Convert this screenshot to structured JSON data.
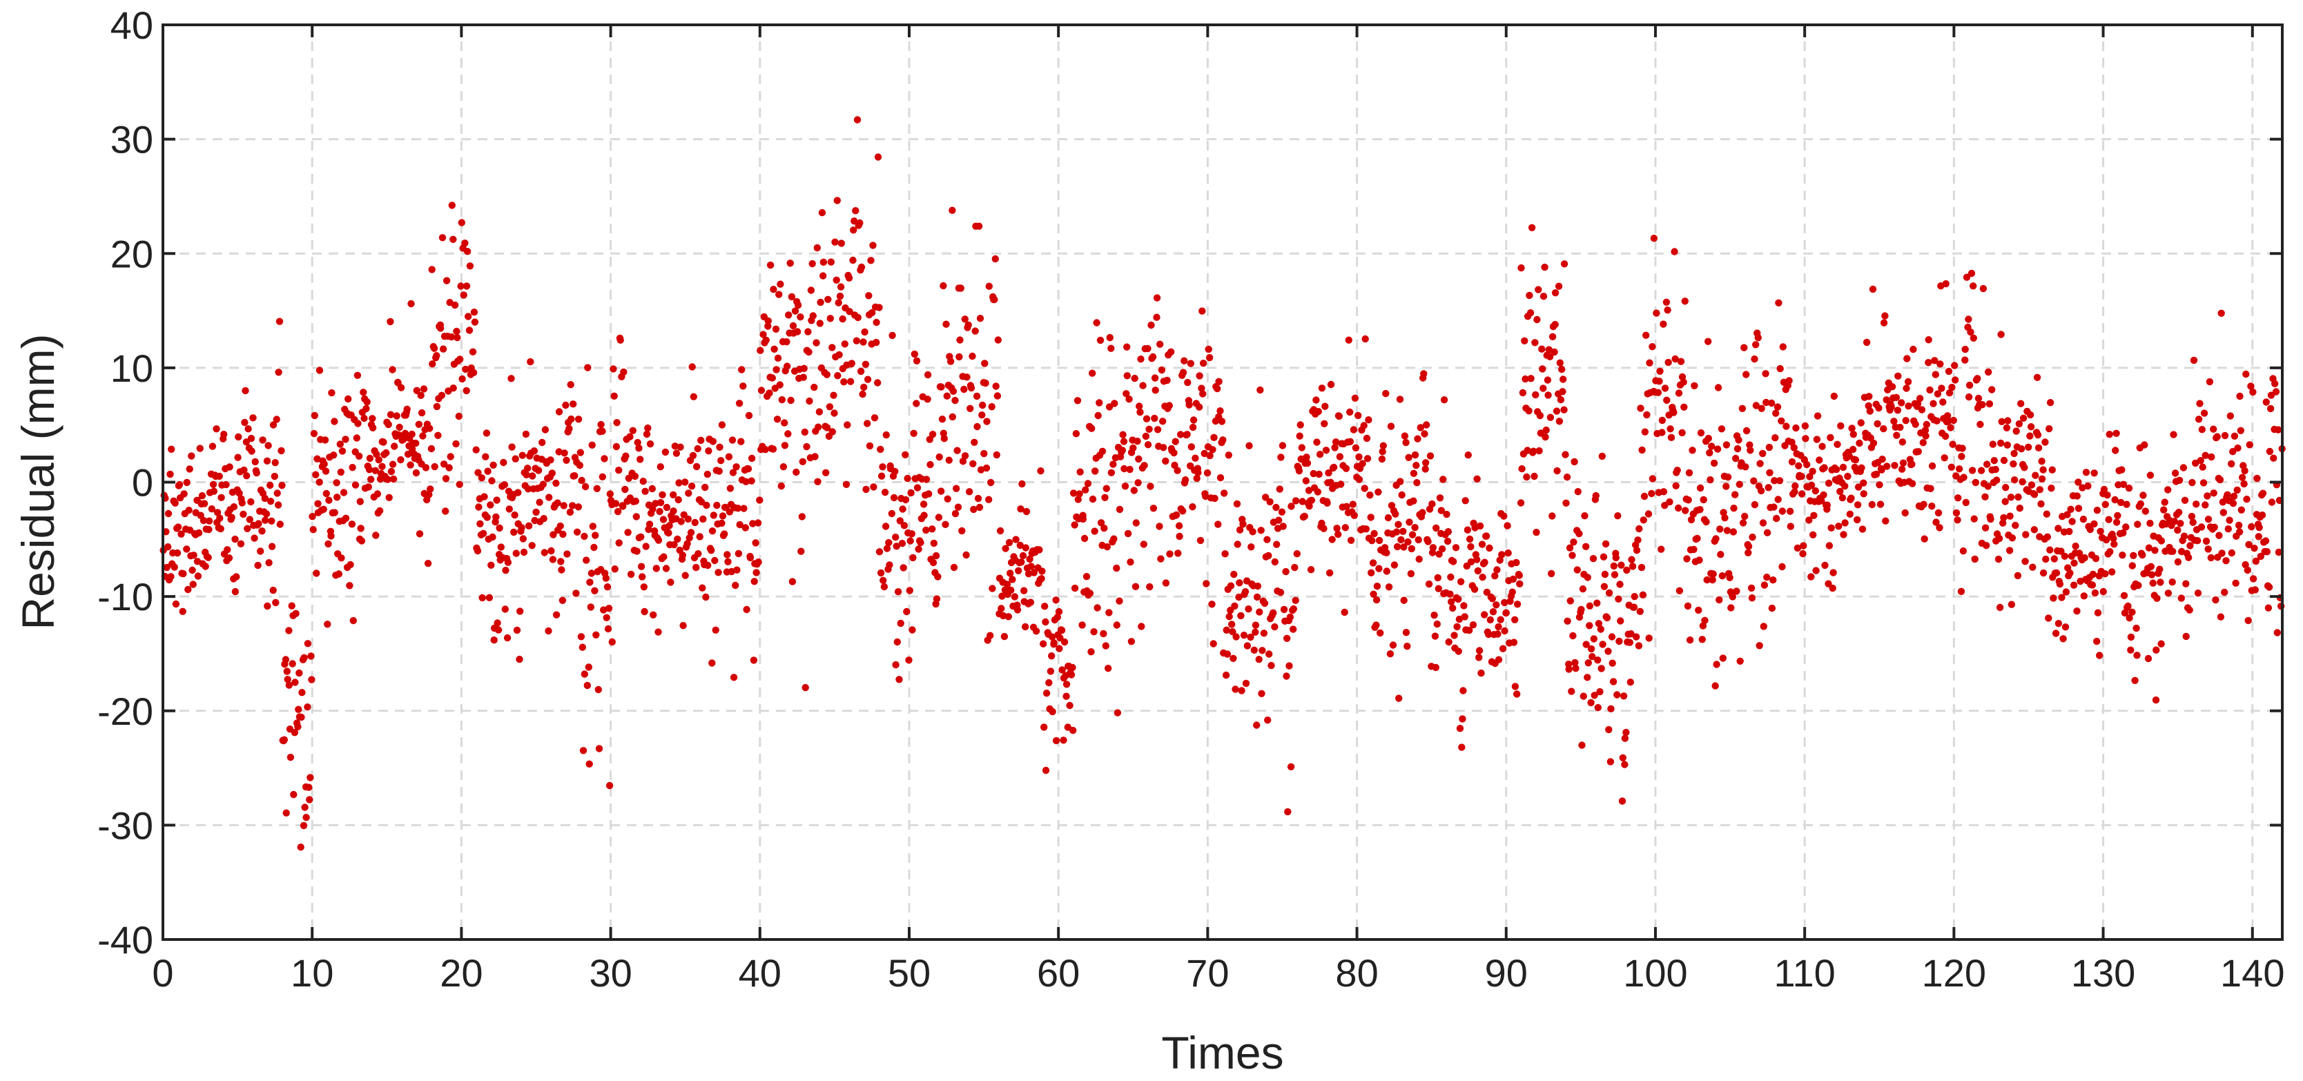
{
  "chart_data": {
    "type": "scatter",
    "title": "",
    "xlabel": "Times",
    "ylabel": "Residual (mm)",
    "xlim": [
      0,
      142
    ],
    "ylim": [
      -40,
      40
    ],
    "xticks": [
      0,
      10,
      20,
      30,
      40,
      50,
      60,
      70,
      80,
      90,
      100,
      110,
      120,
      130,
      140
    ],
    "yticks": [
      -40,
      -30,
      -20,
      -10,
      0,
      10,
      20,
      30,
      40
    ],
    "grid": true,
    "marker_color": "#d40000",
    "description_of_series": "Approximately 3000 residual points, 20 samples per unit time, plotted as small red dots; values estimated from the figure",
    "segments": [
      {
        "t0": 0,
        "t1": 2,
        "c": -4,
        "s": 6
      },
      {
        "t0": 2,
        "t1": 5,
        "c": -3,
        "s": 5
      },
      {
        "t0": 5,
        "t1": 8,
        "c": 0,
        "s": 6
      },
      {
        "t0": 8,
        "t1": 10,
        "c": -20,
        "s": 9
      },
      {
        "t0": 10,
        "t1": 13,
        "c": 0,
        "s": 7
      },
      {
        "t0": 13,
        "t1": 18,
        "c": 3,
        "s": 5
      },
      {
        "t0": 18,
        "t1": 21,
        "c": 12,
        "s": 9
      },
      {
        "t0": 21,
        "t1": 24,
        "c": -6,
        "s": 8
      },
      {
        "t0": 24,
        "t1": 28,
        "c": 0,
        "s": 7
      },
      {
        "t0": 28,
        "t1": 31,
        "c": -5,
        "s": 11
      },
      {
        "t0": 31,
        "t1": 36,
        "c": -3,
        "s": 7
      },
      {
        "t0": 36,
        "t1": 40,
        "c": -3,
        "s": 8
      },
      {
        "t0": 40,
        "t1": 44,
        "c": 8,
        "s": 9
      },
      {
        "t0": 44,
        "t1": 48,
        "c": 13,
        "s": 8
      },
      {
        "t0": 48,
        "t1": 52,
        "c": -3,
        "s": 8
      },
      {
        "t0": 52,
        "t1": 56,
        "c": 5,
        "s": 11
      },
      {
        "t0": 56,
        "t1": 59,
        "c": -8,
        "s": 5
      },
      {
        "t0": 59,
        "t1": 61,
        "c": -18,
        "s": 5
      },
      {
        "t0": 61,
        "t1": 64,
        "c": -3,
        "s": 11
      },
      {
        "t0": 64,
        "t1": 67,
        "c": 3,
        "s": 9
      },
      {
        "t0": 67,
        "t1": 71,
        "c": 4,
        "s": 8
      },
      {
        "t0": 71,
        "t1": 76,
        "c": -7,
        "s": 10
      },
      {
        "t0": 76,
        "t1": 81,
        "c": 1,
        "s": 6
      },
      {
        "t0": 81,
        "t1": 86,
        "c": -5,
        "s": 8
      },
      {
        "t0": 86,
        "t1": 91,
        "c": -10,
        "s": 7
      },
      {
        "t0": 91,
        "t1": 94,
        "c": 8,
        "s": 10
      },
      {
        "t0": 94,
        "t1": 99,
        "c": -12,
        "s": 9
      },
      {
        "t0": 99,
        "t1": 102,
        "c": 5,
        "s": 12
      },
      {
        "t0": 102,
        "t1": 106,
        "c": -3,
        "s": 9
      },
      {
        "t0": 106,
        "t1": 109,
        "c": 2,
        "s": 10
      },
      {
        "t0": 109,
        "t1": 114,
        "c": 0,
        "s": 5
      },
      {
        "t0": 114,
        "t1": 118,
        "c": 5,
        "s": 6
      },
      {
        "t0": 118,
        "t1": 122,
        "c": 6,
        "s": 8
      },
      {
        "t0": 122,
        "t1": 126,
        "c": 0,
        "s": 7
      },
      {
        "t0": 126,
        "t1": 131,
        "c": -7,
        "s": 6
      },
      {
        "t0": 131,
        "t1": 136,
        "c": -6,
        "s": 6
      },
      {
        "t0": 136,
        "t1": 142,
        "c": -2,
        "s": 8
      }
    ],
    "samples_per_unit": 20
  }
}
